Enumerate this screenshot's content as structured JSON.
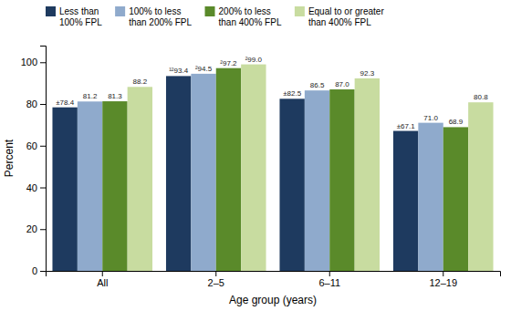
{
  "chart_data": {
    "type": "bar",
    "categories": [
      "All",
      "2–5",
      "6–11",
      "12–19"
    ],
    "series": [
      {
        "name": "Less than\n100% FPL",
        "color": "#1e3a5f",
        "values": [
          78.4,
          93.4,
          82.5,
          67.1
        ],
        "value_labels": [
          "±78.4",
          "¹²93.4",
          "±82.5",
          "±67.1"
        ]
      },
      {
        "name": "100% to less\nthan 200% FPL",
        "color": "#8faacc",
        "values": [
          81.2,
          94.5,
          86.5,
          71.0
        ],
        "value_labels": [
          "81.2",
          "²94.5",
          "86.5",
          "71.0"
        ]
      },
      {
        "name": "200% to less\nthan 400% FPL",
        "color": "#5a8a2a",
        "values": [
          81.3,
          97.2,
          87.0,
          68.9
        ],
        "value_labels": [
          "81.3",
          "²97.2",
          "87.0",
          "68.9"
        ]
      },
      {
        "name": "Equal to or greater\nthan 400% FPL",
        "color": "#c8dca0",
        "values": [
          88.2,
          99.0,
          92.3,
          80.8
        ],
        "value_labels": [
          "88.2",
          "²99.0",
          "92.3",
          "80.8"
        ]
      }
    ],
    "xlabel": "Age group (years)",
    "ylabel": "Percent",
    "ylim": [
      0,
      108
    ],
    "yticks": [
      0,
      20,
      40,
      60,
      80,
      100
    ],
    "grid": false,
    "legend": "top",
    "data_labels": true
  }
}
